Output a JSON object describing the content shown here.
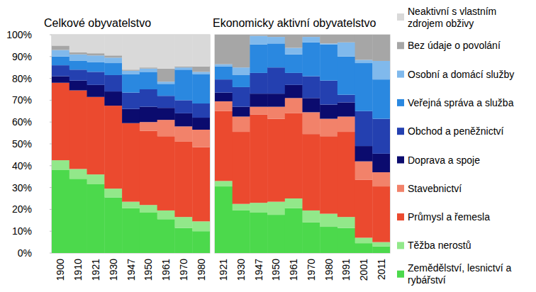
{
  "chart_data": [
    {
      "type": "bar",
      "stacked": true,
      "title": "Celkové obyvatelstvo",
      "categories": [
        "1900",
        "1910",
        "1921",
        "1930",
        "1947",
        "1950",
        "1961",
        "1970",
        "1980"
      ],
      "series": [
        {
          "name": "Zemědělství, lesnictví a rybářství",
          "color": "#4cd94c",
          "values": [
            38,
            34,
            31.5,
            25.5,
            20.5,
            18.5,
            15.5,
            11.5,
            10
          ]
        },
        {
          "name": "Těžba nerostů",
          "color": "#92e88a",
          "values": [
            4.5,
            4.5,
            4.5,
            4,
            3,
            3.5,
            4,
            5,
            4.5
          ]
        },
        {
          "name": "Průmysl a řemesla",
          "color": "#eb4a2f",
          "values": [
            35.5,
            36,
            35.5,
            38,
            36,
            34,
            34,
            34.5,
            34
          ]
        },
        {
          "name": "Stavebnictví",
          "color": "#f2826a",
          "values": [
            0,
            0,
            0,
            0,
            0,
            4,
            7.5,
            7,
            8
          ]
        },
        {
          "name": "Doprava a spoje",
          "color": "#0b0b6e",
          "values": [
            3,
            4.5,
            5.5,
            6.5,
            6.5,
            7,
            5.5,
            6,
            5.5
          ]
        },
        {
          "name": "Obchod a peněžnictví",
          "color": "#2440b0",
          "values": [
            5,
            5,
            6,
            7.5,
            7.5,
            8,
            5.5,
            6,
            6.5
          ]
        },
        {
          "name": "Veřejná správa a služba",
          "color": "#2a88e0",
          "values": [
            4,
            4,
            4.5,
            5.5,
            8.5,
            8,
            5.5,
            14,
            13.5
          ]
        },
        {
          "name": "Osobní a domácí služby",
          "color": "#80b9ec",
          "values": [
            3,
            3,
            3,
            2.5,
            1.5,
            1.5,
            1,
            1,
            1
          ]
        },
        {
          "name": "Bez údaje o povolání",
          "color": "#a6a6a6",
          "values": [
            2,
            1,
            1,
            1,
            0.5,
            0.5,
            6,
            0.5,
            2.5
          ]
        },
        {
          "name": "Neaktivní s vlastním zdrojem obživy",
          "color": "#d9d9d9",
          "values": [
            5,
            8,
            8.5,
            9.5,
            16,
            15,
            15.5,
            14.5,
            14.5
          ]
        }
      ],
      "ylim": [
        0,
        100
      ],
      "yticks": [
        {
          "value": 0,
          "label": "0%"
        },
        {
          "value": 10,
          "label": "10%"
        },
        {
          "value": 20,
          "label": "20%"
        },
        {
          "value": 30,
          "label": "30%"
        },
        {
          "value": 40,
          "label": "40%"
        },
        {
          "value": 50,
          "label": "50%"
        },
        {
          "value": 60,
          "label": "60%"
        },
        {
          "value": 70,
          "label": "70%"
        },
        {
          "value": 80,
          "label": "80%"
        },
        {
          "value": 90,
          "label": "90%"
        },
        {
          "value": 100,
          "label": "100%"
        }
      ],
      "grid": false,
      "tick_labels": true
    },
    {
      "type": "bar",
      "stacked": true,
      "title": "Ekonomicky aktivní obyvatelstvo",
      "categories": [
        "1921",
        "1930",
        "1947",
        "1950",
        "1961",
        "1970",
        "1980",
        "1991",
        "2001",
        "2011"
      ],
      "series": [
        {
          "name": "Zemědělství, lesnictví a rybářství",
          "color": "#4cd94c",
          "values": [
            30.5,
            19.5,
            18.5,
            17.5,
            20.5,
            14,
            12,
            11.5,
            4.5,
            3
          ]
        },
        {
          "name": "Těžba nerostů",
          "color": "#92e88a",
          "values": [
            2.5,
            3,
            4.5,
            6,
            4.5,
            5.5,
            6,
            5,
            2.5,
            2
          ]
        },
        {
          "name": "Průmysl a řemesla",
          "color": "#eb4a2f",
          "values": [
            32,
            33,
            40.5,
            38,
            39,
            35,
            35.5,
            39,
            26.5,
            25.5
          ]
        },
        {
          "name": "Stavebnictví",
          "color": "#f2826a",
          "values": [
            4.5,
            7,
            3.5,
            5.5,
            7,
            10,
            8,
            7,
            8.5,
            6.5
          ]
        },
        {
          "name": "Doprava a spoje",
          "color": "#0b0b6e",
          "values": [
            4,
            4.5,
            6,
            6,
            6,
            6.5,
            6.5,
            6.5,
            7,
            8.5
          ]
        },
        {
          "name": "Obchod a peněžnictví",
          "color": "#2440b0",
          "values": [
            6,
            9,
            9.5,
            12,
            5.5,
            10,
            11,
            3.5,
            16,
            16
          ]
        },
        {
          "name": "Veřejná správa a služba",
          "color": "#2a88e0",
          "values": [
            6,
            5.5,
            13,
            11,
            8.5,
            15.5,
            16.5,
            17.5,
            22,
            18
          ]
        },
        {
          "name": "Osobní a domácí služby",
          "color": "#80b9ec",
          "values": [
            1,
            3.5,
            4,
            3,
            3,
            2.5,
            0.5,
            6.5,
            1.5,
            8.5
          ]
        },
        {
          "name": "Bez údaje o povolání",
          "color": "#a6a6a6",
          "values": [
            13.5,
            15,
            0.5,
            1,
            6,
            1,
            4,
            3.5,
            11.5,
            12
          ]
        },
        {
          "name": "Neaktivní s vlastním zdrojem obživy",
          "color": "#d9d9d9",
          "values": [
            0,
            0,
            0,
            0,
            0,
            0,
            0,
            0,
            0,
            0
          ]
        }
      ],
      "ylim": [
        0,
        100
      ],
      "yticks": [
        {
          "value": 0,
          "label": "0%"
        },
        {
          "value": 10,
          "label": "10%"
        },
        {
          "value": 20,
          "label": "20%"
        },
        {
          "value": 30,
          "label": "30%"
        },
        {
          "value": 40,
          "label": "40%"
        },
        {
          "value": 50,
          "label": "50%"
        },
        {
          "value": 60,
          "label": "60%"
        },
        {
          "value": 70,
          "label": "70%"
        },
        {
          "value": 80,
          "label": "80%"
        },
        {
          "value": 90,
          "label": "90%"
        },
        {
          "value": 100,
          "label": "100%"
        }
      ],
      "grid": false,
      "tick_labels": "x",
      "legend": "right"
    }
  ]
}
